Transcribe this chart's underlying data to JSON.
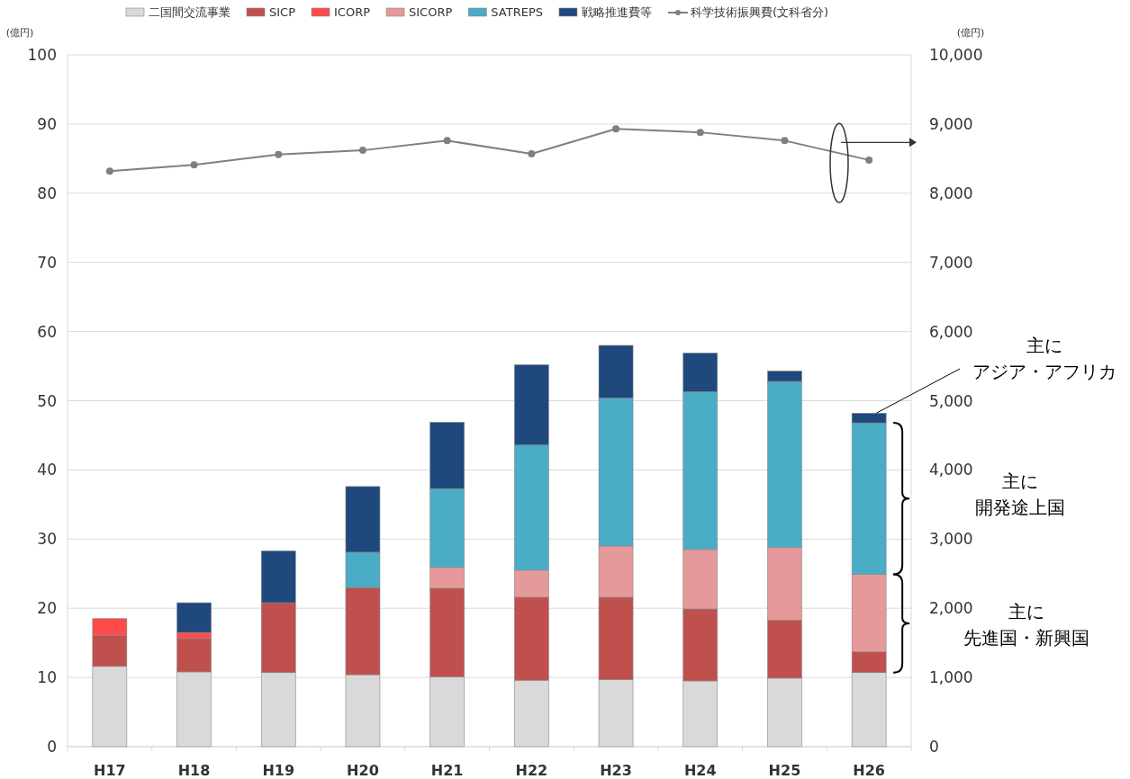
{
  "chart_data": {
    "type": "bar",
    "stacked": true,
    "categories": [
      "H17",
      "H18",
      "H19",
      "H20",
      "H21",
      "H22",
      "H23",
      "H24",
      "H25",
      "H26"
    ],
    "ylabel": "(億円)",
    "y2label": "(億円)",
    "ylim": [
      0,
      100
    ],
    "yticks": [
      0,
      10,
      20,
      30,
      40,
      50,
      60,
      70,
      80,
      90,
      100
    ],
    "y2lim": [
      0,
      10000
    ],
    "y2ticks": [
      {
        "value": 0,
        "label": "0"
      },
      {
        "value": 1000,
        "label": "1,000"
      },
      {
        "value": 2000,
        "label": "2,000"
      },
      {
        "value": 3000,
        "label": "3,000"
      },
      {
        "value": 4000,
        "label": "4,000"
      },
      {
        "value": 5000,
        "label": "5,000"
      },
      {
        "value": 6000,
        "label": "6,000"
      },
      {
        "value": 7000,
        "label": "7,000"
      },
      {
        "value": 8000,
        "label": "8,000"
      },
      {
        "value": 9000,
        "label": "9,000"
      },
      {
        "value": 10000,
        "label": "10,000"
      }
    ],
    "grid": "y",
    "legend": "top",
    "series": [
      {
        "name": "二国間交流事業",
        "color": "#d9d9d9",
        "values": [
          11.6,
          10.8,
          10.7,
          10.4,
          10.1,
          9.6,
          9.7,
          9.5,
          9.9,
          10.7
        ]
      },
      {
        "name": "SICP",
        "color": "#c0504d",
        "values": [
          4.5,
          4.9,
          10.1,
          12.6,
          12.8,
          12.0,
          11.9,
          10.4,
          8.4,
          3.0
        ]
      },
      {
        "name": "ICORP",
        "color": "#ff4b4b",
        "values": [
          2.4,
          0.8,
          null,
          null,
          null,
          null,
          null,
          null,
          null,
          null
        ]
      },
      {
        "name": "SICORP",
        "color": "#e6999a",
        "values": [
          null,
          null,
          null,
          null,
          3.0,
          3.9,
          7.4,
          8.6,
          10.5,
          11.2
        ]
      },
      {
        "name": "SATREPS",
        "color": "#4bacc6",
        "values": [
          null,
          null,
          null,
          5.1,
          11.4,
          18.1,
          21.4,
          22.8,
          24.0,
          21.9
        ]
      },
      {
        "name": "戦略推進費等",
        "color": "#1f497d",
        "values": [
          null,
          4.3,
          7.5,
          9.5,
          9.6,
          11.6,
          7.6,
          5.6,
          1.5,
          1.4
        ]
      },
      {
        "name": "科学技術振興費(文科省分)",
        "type": "line",
        "axis": "y2",
        "color": "#7f7f7f",
        "marker": "circle",
        "values": [
          8320,
          8410,
          8560,
          8620,
          8760,
          8570,
          8930,
          8880,
          8760,
          8480
        ]
      }
    ],
    "annotations": [
      "主に",
      {
        "text": "アジア・アフリカ",
        "x": "H26",
        "y": 48.2
      },
      "主に",
      "開発途上国",
      "主に",
      "先進国・新興国"
    ]
  }
}
